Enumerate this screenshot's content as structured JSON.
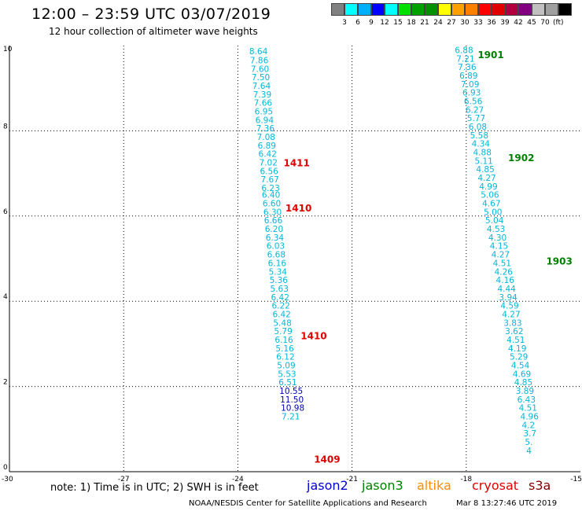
{
  "header": {
    "title": "12:00 – 23:59 UTC 03/07/2019",
    "subtitle": "12 hour collection of altimeter wave heights"
  },
  "legend": {
    "colors": [
      "#808080",
      "#00ffff",
      "#00b0ff",
      "#0000ff",
      "#00ffff",
      "#00e000",
      "#00a000",
      "#009000",
      "#ffff00",
      "#ffa000",
      "#ff8000",
      "#ff0000",
      "#e00000",
      "#b00040",
      "#800080",
      "#c0c0c0",
      "#a0a0a0",
      "#000000"
    ],
    "labels": [
      "3",
      "6",
      "9",
      "12",
      "15",
      "18",
      "21",
      "24",
      "27",
      "30",
      "33",
      "36",
      "39",
      "42",
      "45",
      "70"
    ],
    "unit": "(ft)"
  },
  "footer": {
    "note": "note:  1) Time is in UTC;  2) SWH is in feet",
    "satellites": [
      {
        "name": "jason2",
        "color": "#0000d0"
      },
      {
        "name": "jason3",
        "color": "#008000"
      },
      {
        "name": "altika",
        "color": "#ff8c00"
      },
      {
        "name": "cryosat",
        "color": "#e00000"
      },
      {
        "name": "s3a",
        "color": "#800000"
      }
    ],
    "credit": "NOAA/NESDIS Center for Satellite Applications and Research",
    "timestamp": "Mar  8 13:27:46 UTC 2019"
  },
  "chart_data": {
    "type": "scatter",
    "title": "12:00 – 23:59 UTC 03/07/2019",
    "subtitle": "12 hour collection of altimeter wave heights",
    "xlim": [
      -30,
      -15
    ],
    "ylim": [
      0,
      10
    ],
    "x_ticks": [
      "-30",
      "-27",
      "-24",
      "-21",
      "-18",
      "-15"
    ],
    "y_ticks": [
      "0",
      "2",
      "4",
      "6",
      "8",
      "10"
    ],
    "grid": true,
    "grid_x": [
      -27,
      -24,
      -21,
      -18
    ],
    "grid_y": [
      2,
      4,
      6,
      8
    ],
    "tracks": [
      {
        "name": "track-left",
        "color": "#00b8d8",
        "points": [
          {
            "x": -23.7,
            "y": 9.87,
            "v": "8.64"
          },
          {
            "x": -23.68,
            "y": 9.66,
            "v": "7.86"
          },
          {
            "x": -23.66,
            "y": 9.46,
            "v": "7.60"
          },
          {
            "x": -23.64,
            "y": 9.26,
            "v": "7.50"
          },
          {
            "x": -23.62,
            "y": 9.06,
            "v": "7.64"
          },
          {
            "x": -23.6,
            "y": 8.86,
            "v": "7.39"
          },
          {
            "x": -23.58,
            "y": 8.66,
            "v": "7.66"
          },
          {
            "x": -23.56,
            "y": 8.46,
            "v": "6.95"
          },
          {
            "x": -23.54,
            "y": 8.26,
            "v": "6.94"
          },
          {
            "x": -23.52,
            "y": 8.06,
            "v": "7.36"
          },
          {
            "x": -23.5,
            "y": 7.86,
            "v": "7.08"
          },
          {
            "x": -23.48,
            "y": 7.66,
            "v": "6.89"
          },
          {
            "x": -23.46,
            "y": 7.46,
            "v": "6.42"
          },
          {
            "x": -23.44,
            "y": 7.26,
            "v": "7.02"
          },
          {
            "x": -23.42,
            "y": 7.06,
            "v": "6.56"
          },
          {
            "x": -23.4,
            "y": 6.86,
            "v": "7.67"
          },
          {
            "x": -23.38,
            "y": 6.66,
            "v": "6.23"
          },
          {
            "x": -23.37,
            "y": 6.5,
            "v": "6.40"
          },
          {
            "x": -23.35,
            "y": 6.3,
            "v": "6.60"
          },
          {
            "x": -23.33,
            "y": 6.1,
            "v": "6.30"
          },
          {
            "x": -23.31,
            "y": 5.9,
            "v": "6.66"
          },
          {
            "x": -23.29,
            "y": 5.7,
            "v": "6.20"
          },
          {
            "x": -23.27,
            "y": 5.5,
            "v": "6.34"
          },
          {
            "x": -23.25,
            "y": 5.3,
            "v": "6.03"
          },
          {
            "x": -23.23,
            "y": 5.1,
            "v": "6.68"
          },
          {
            "x": -23.21,
            "y": 4.9,
            "v": "6.16"
          },
          {
            "x": -23.19,
            "y": 4.7,
            "v": "5.34"
          },
          {
            "x": -23.17,
            "y": 4.5,
            "v": "5.36"
          },
          {
            "x": -23.15,
            "y": 4.3,
            "v": "5.63"
          },
          {
            "x": -23.13,
            "y": 4.1,
            "v": "6.42"
          },
          {
            "x": -23.11,
            "y": 3.9,
            "v": "6.22"
          },
          {
            "x": -23.09,
            "y": 3.7,
            "v": "6.42"
          },
          {
            "x": -23.07,
            "y": 3.5,
            "v": "5.48"
          },
          {
            "x": -23.05,
            "y": 3.3,
            "v": "5.79"
          },
          {
            "x": -23.03,
            "y": 3.1,
            "v": "6.16"
          },
          {
            "x": -23.01,
            "y": 2.9,
            "v": "5.16"
          },
          {
            "x": -22.99,
            "y": 2.7,
            "v": "6.12"
          },
          {
            "x": -22.97,
            "y": 2.5,
            "v": "5.09"
          },
          {
            "x": -22.95,
            "y": 2.3,
            "v": "5.53"
          },
          {
            "x": -22.93,
            "y": 2.1,
            "v": "6.51"
          },
          {
            "x": -22.91,
            "y": 1.9,
            "v": "10.55",
            "color": "#0000b0"
          },
          {
            "x": -22.89,
            "y": 1.7,
            "v": "11.50",
            "color": "#0000b0"
          },
          {
            "x": -22.87,
            "y": 1.5,
            "v": "10.98",
            "color": "#0000b0"
          },
          {
            "x": -22.85,
            "y": 1.3,
            "v": "7.21"
          }
        ]
      },
      {
        "name": "track-right",
        "color": "#00b8d8",
        "points": [
          {
            "x": -18.3,
            "y": 9.9,
            "v": "6.88"
          },
          {
            "x": -18.26,
            "y": 9.7,
            "v": "7.21"
          },
          {
            "x": -18.22,
            "y": 9.5,
            "v": "7.36"
          },
          {
            "x": -18.18,
            "y": 9.3,
            "v": "6.89"
          },
          {
            "x": -18.14,
            "y": 9.1,
            "v": "7.09"
          },
          {
            "x": -18.1,
            "y": 8.9,
            "v": "6.93"
          },
          {
            "x": -18.06,
            "y": 8.7,
            "v": "6.56"
          },
          {
            "x": -18.02,
            "y": 8.5,
            "v": "6.27"
          },
          {
            "x": -17.98,
            "y": 8.3,
            "v": "5.77"
          },
          {
            "x": -17.94,
            "y": 8.1,
            "v": "6.08"
          },
          {
            "x": -17.9,
            "y": 7.9,
            "v": "5.58"
          },
          {
            "x": -17.86,
            "y": 7.7,
            "v": "4.34"
          },
          {
            "x": -17.82,
            "y": 7.5,
            "v": "4.88"
          },
          {
            "x": -17.78,
            "y": 7.3,
            "v": "5.11"
          },
          {
            "x": -17.74,
            "y": 7.1,
            "v": "4.85"
          },
          {
            "x": -17.7,
            "y": 6.9,
            "v": "4.27"
          },
          {
            "x": -17.66,
            "y": 6.7,
            "v": "4.99"
          },
          {
            "x": -17.62,
            "y": 6.5,
            "v": "5.06"
          },
          {
            "x": -17.58,
            "y": 6.3,
            "v": "4.67"
          },
          {
            "x": -17.54,
            "y": 6.1,
            "v": "5.00"
          },
          {
            "x": -17.5,
            "y": 5.9,
            "v": "5.04"
          },
          {
            "x": -17.46,
            "y": 5.7,
            "v": "4.53"
          },
          {
            "x": -17.42,
            "y": 5.5,
            "v": "4.30"
          },
          {
            "x": -17.38,
            "y": 5.3,
            "v": "4.15"
          },
          {
            "x": -17.34,
            "y": 5.1,
            "v": "4.27"
          },
          {
            "x": -17.3,
            "y": 4.9,
            "v": "4.51"
          },
          {
            "x": -17.26,
            "y": 4.7,
            "v": "4.26"
          },
          {
            "x": -17.22,
            "y": 4.5,
            "v": "4.16"
          },
          {
            "x": -17.18,
            "y": 4.3,
            "v": "4.44"
          },
          {
            "x": -17.14,
            "y": 4.1,
            "v": "3.94"
          },
          {
            "x": -17.1,
            "y": 3.9,
            "v": "4.59"
          },
          {
            "x": -17.06,
            "y": 3.7,
            "v": "4.27"
          },
          {
            "x": -17.02,
            "y": 3.5,
            "v": "3.83"
          },
          {
            "x": -16.98,
            "y": 3.3,
            "v": "3.62"
          },
          {
            "x": -16.94,
            "y": 3.1,
            "v": "4.51"
          },
          {
            "x": -16.9,
            "y": 2.9,
            "v": "4.19"
          },
          {
            "x": -16.86,
            "y": 2.7,
            "v": "5.29"
          },
          {
            "x": -16.82,
            "y": 2.5,
            "v": "4.54"
          },
          {
            "x": -16.78,
            "y": 2.3,
            "v": "4.69"
          },
          {
            "x": -16.74,
            "y": 2.1,
            "v": "4.85"
          },
          {
            "x": -16.7,
            "y": 1.9,
            "v": "3.89"
          },
          {
            "x": -16.66,
            "y": 1.7,
            "v": "6.43"
          },
          {
            "x": -16.62,
            "y": 1.5,
            "v": "4.51"
          },
          {
            "x": -16.58,
            "y": 1.3,
            "v": "4.96"
          },
          {
            "x": -16.54,
            "y": 1.1,
            "v": "4.2"
          },
          {
            "x": -16.5,
            "y": 0.9,
            "v": "3.7"
          },
          {
            "x": -16.46,
            "y": 0.7,
            "v": "5."
          },
          {
            "x": -16.42,
            "y": 0.5,
            "v": "4"
          }
        ]
      }
    ],
    "annotations": [
      {
        "x": -22.8,
        "y": 7.26,
        "text": "1411",
        "color": "#e00000"
      },
      {
        "x": -22.75,
        "y": 6.2,
        "text": "1410",
        "color": "#e00000"
      },
      {
        "x": -22.35,
        "y": 3.2,
        "text": "1410",
        "color": "#e00000"
      },
      {
        "x": -22.0,
        "y": 0.3,
        "text": "1409",
        "color": "#e00000"
      },
      {
        "x": -17.7,
        "y": 9.8,
        "text": "1901",
        "color": "#008000"
      },
      {
        "x": -16.9,
        "y": 7.38,
        "text": "1902",
        "color": "#008000"
      },
      {
        "x": -15.9,
        "y": 4.95,
        "text": "1903",
        "color": "#008000"
      }
    ]
  }
}
